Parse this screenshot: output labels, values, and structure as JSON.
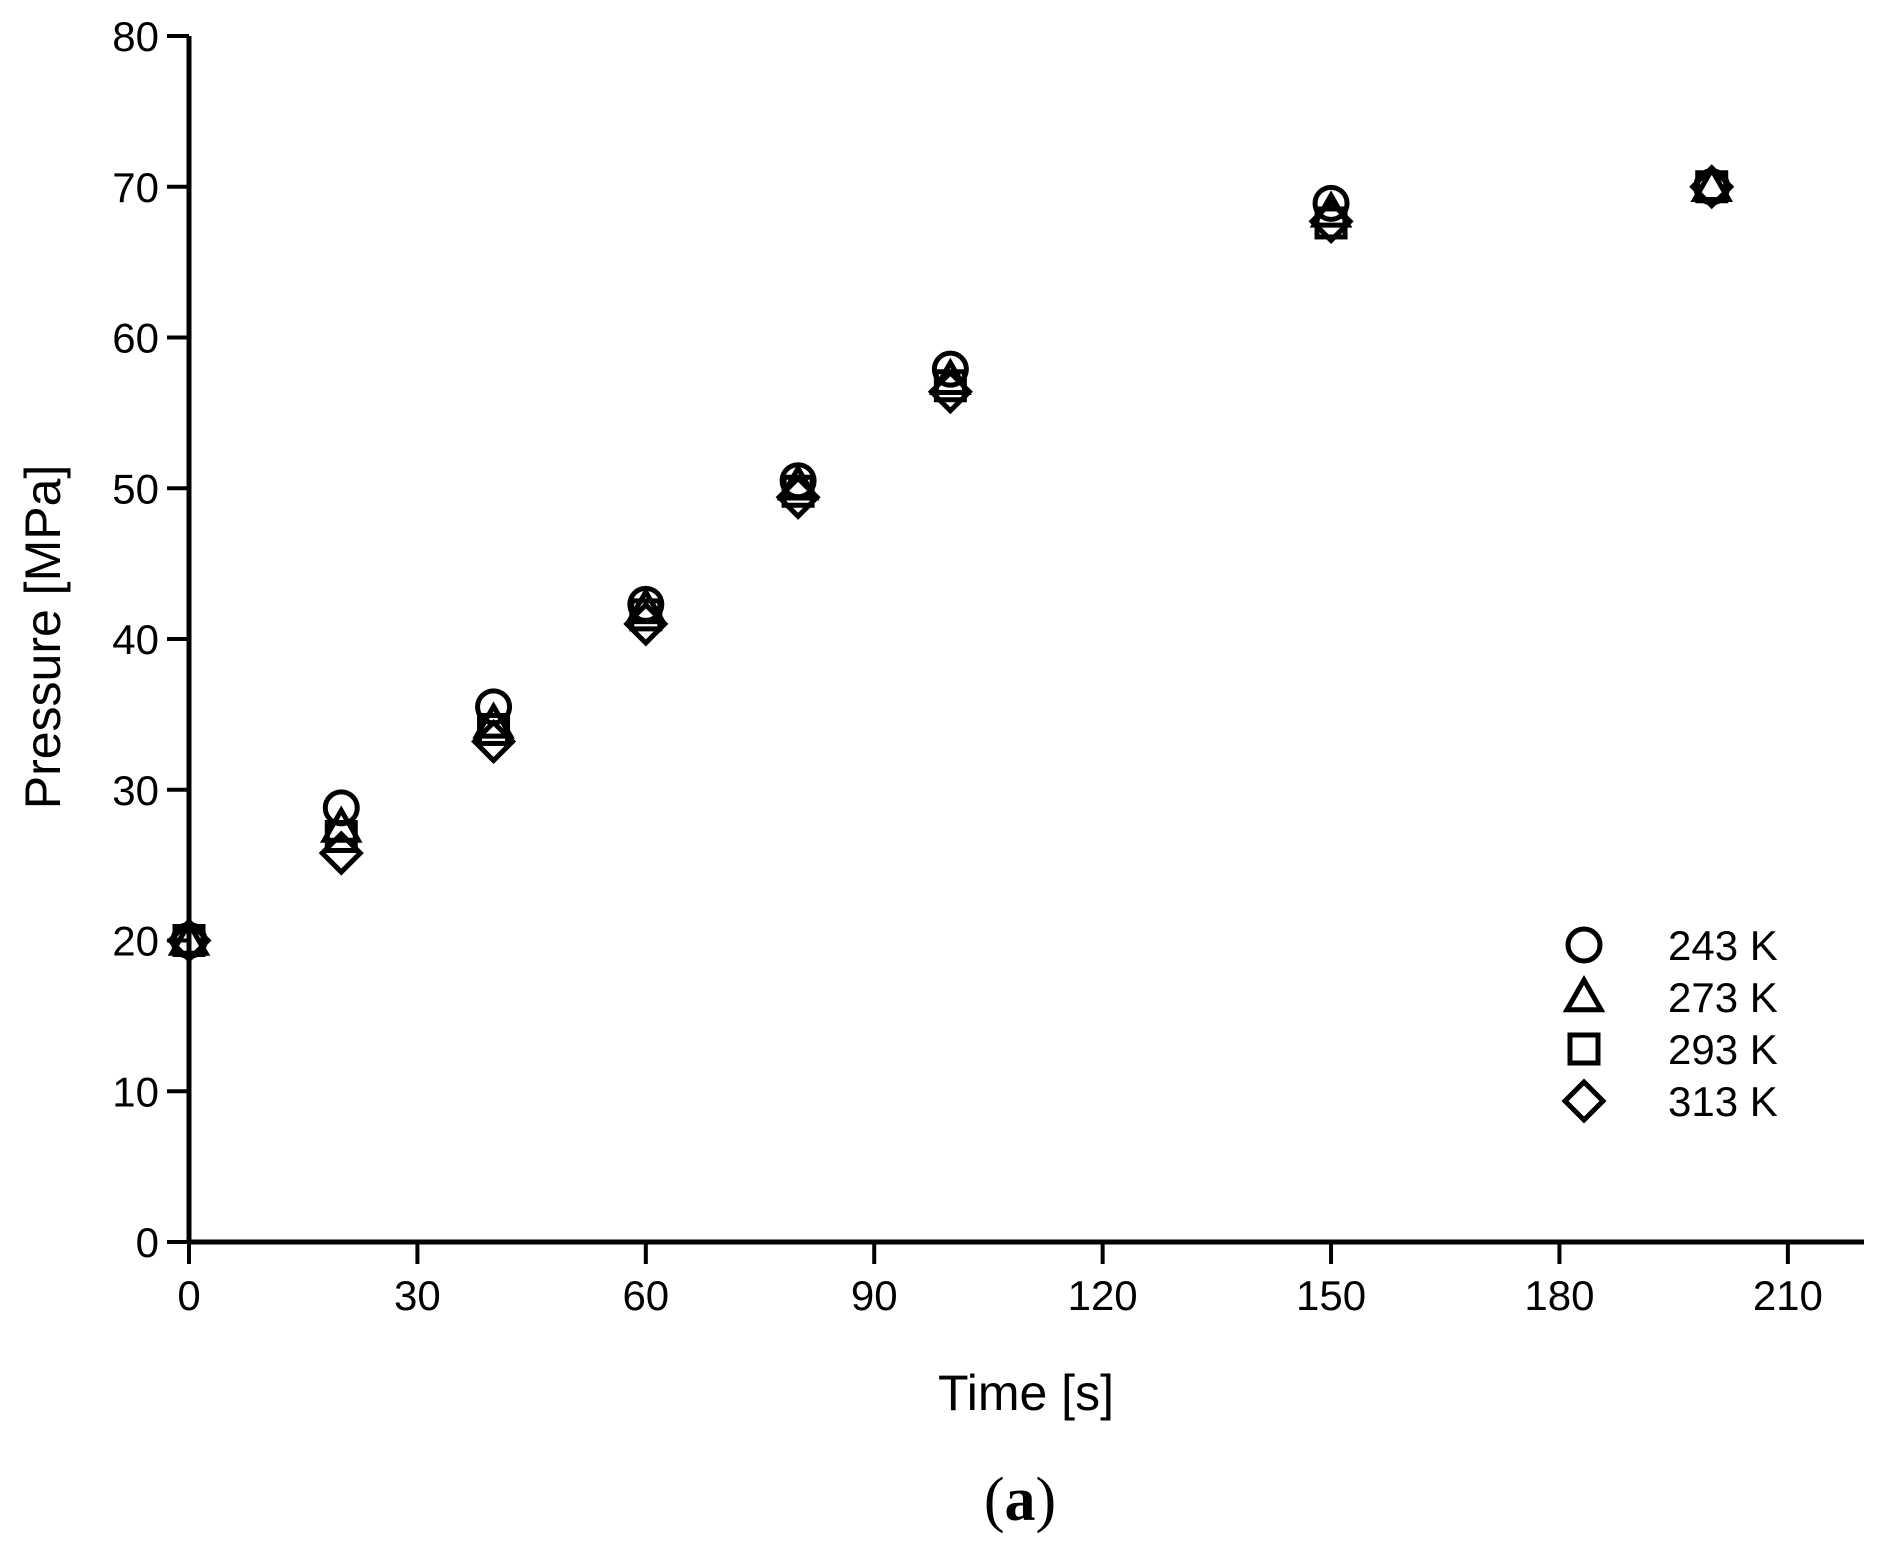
{
  "chart_data": {
    "type": "scatter",
    "xlabel": "Time [s]",
    "ylabel": "Pressure [MPa]",
    "caption_prefix": "(",
    "caption_letter": "a",
    "caption_suffix": ")",
    "xlim": [
      0,
      220
    ],
    "ylim": [
      0,
      80
    ],
    "xticks": [
      0,
      30,
      60,
      90,
      120,
      150,
      180,
      210
    ],
    "yticks": [
      0,
      10,
      20,
      30,
      40,
      50,
      60,
      70,
      80
    ],
    "xtick_labels": [
      "0",
      "30",
      "60",
      "90",
      "120",
      "150",
      "180",
      "210"
    ],
    "ytick_labels": [
      "0",
      "10",
      "20",
      "30",
      "40",
      "50",
      "60",
      "70",
      "80"
    ],
    "grid": false,
    "legend_position": "bottom-right",
    "marker_color": "#000000",
    "series": [
      {
        "name": "243 K",
        "marker": "circle",
        "x": [
          0,
          20,
          40,
          60,
          80,
          100,
          150,
          200
        ],
        "y": [
          20.0,
          28.8,
          35.5,
          42.3,
          50.5,
          57.9,
          68.9,
          70.0
        ]
      },
      {
        "name": "273 K",
        "marker": "triangle",
        "x": [
          0,
          20,
          40,
          60,
          80,
          100,
          150,
          200
        ],
        "y": [
          20.0,
          27.5,
          34.4,
          42.0,
          50.2,
          57.2,
          68.3,
          70.0
        ]
      },
      {
        "name": "293 K",
        "marker": "square",
        "x": [
          0,
          20,
          40,
          60,
          80,
          100,
          150,
          200
        ],
        "y": [
          20.0,
          26.9,
          34.0,
          41.6,
          49.8,
          56.8,
          67.6,
          70.0
        ]
      },
      {
        "name": "313 K",
        "marker": "diamond",
        "x": [
          0,
          20,
          40,
          60,
          80,
          100,
          150,
          200
        ],
        "y": [
          20.0,
          25.8,
          33.2,
          41.0,
          49.4,
          56.4,
          67.7,
          70.0
        ]
      }
    ]
  }
}
